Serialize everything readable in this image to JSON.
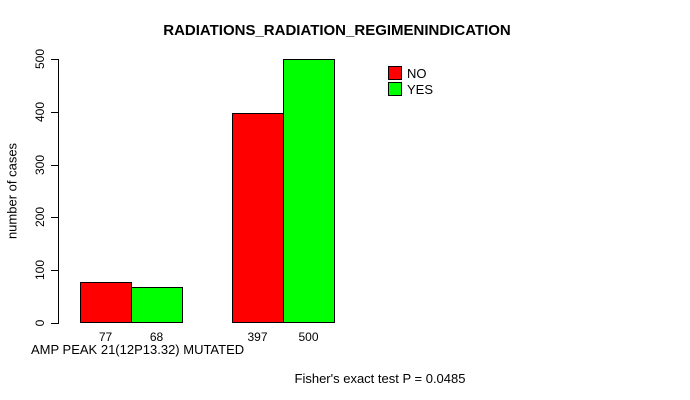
{
  "chart_data": {
    "type": "bar",
    "title": "RADIATIONS_RADIATION_REGIMENINDICATION",
    "ylabel": "number of cases",
    "xlabel": "AMP PEAK 21(12P13.32) MUTATED",
    "footer": "Fisher's exact test P = 0.0485",
    "ylim": [
      0,
      500
    ],
    "yticks": [
      0,
      100,
      200,
      300,
      400,
      500
    ],
    "grid": false,
    "legend_position": "top-right",
    "series": [
      {
        "name": "NO",
        "color": "#FF0000",
        "values": [
          77,
          397
        ]
      },
      {
        "name": "YES",
        "color": "#00FF00",
        "values": [
          68,
          500
        ]
      }
    ],
    "bar_labels": [
      [
        "77",
        "68"
      ],
      [
        "397",
        "500"
      ]
    ],
    "legend": [
      {
        "label": "NO",
        "color": "#FF0000"
      },
      {
        "label": "YES",
        "color": "#00FF00"
      }
    ]
  }
}
